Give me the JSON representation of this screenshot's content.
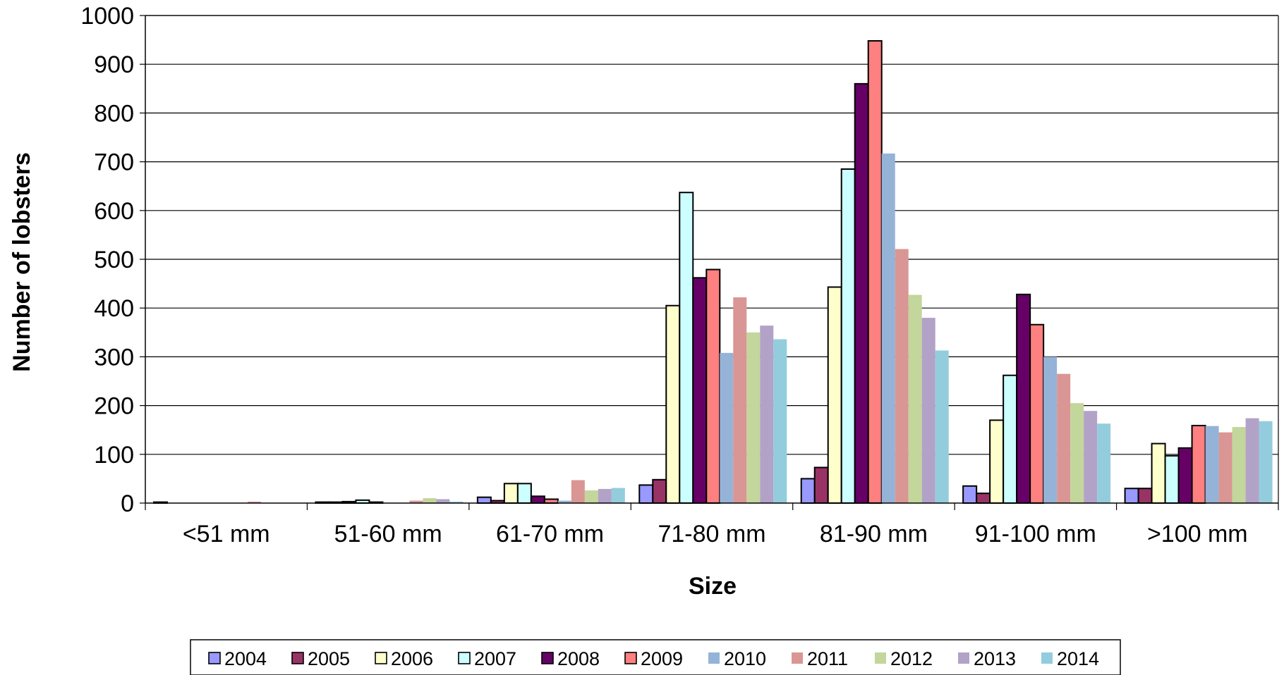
{
  "chart_data": {
    "type": "bar",
    "xlabel": "Size",
    "ylabel": "Number of lobsters",
    "ylim": [
      0,
      1000
    ],
    "yticks": [
      0,
      100,
      200,
      300,
      400,
      500,
      600,
      700,
      800,
      900,
      1000
    ],
    "grid": true,
    "legend_position": "bottom",
    "categories": [
      "<51 mm",
      "51-60 mm",
      "61-70 mm",
      "71-80 mm",
      "81-90 mm",
      "91-100 mm",
      ">100 mm"
    ],
    "series": [
      {
        "name": "2004",
        "color": "#9999ff",
        "outlined": true,
        "values": [
          2,
          2,
          12,
          37,
          50,
          35,
          30
        ]
      },
      {
        "name": "2005",
        "color": "#993366",
        "outlined": true,
        "values": [
          0,
          2,
          5,
          48,
          73,
          20,
          30
        ]
      },
      {
        "name": "2006",
        "color": "#ffffcc",
        "outlined": true,
        "values": [
          0,
          3,
          40,
          405,
          443,
          170,
          122
        ]
      },
      {
        "name": "2007",
        "color": "#ccffff",
        "outlined": true,
        "values": [
          0,
          6,
          40,
          637,
          685,
          262,
          97
        ]
      },
      {
        "name": "2008",
        "color": "#660066",
        "outlined": true,
        "values": [
          0,
          2,
          14,
          462,
          860,
          428,
          113
        ]
      },
      {
        "name": "2009",
        "color": "#ff8080",
        "outlined": true,
        "values": [
          0,
          0,
          8,
          479,
          948,
          366,
          159
        ]
      },
      {
        "name": "2010",
        "color": "#95b3d7",
        "outlined": false,
        "values": [
          0,
          0,
          5,
          308,
          717,
          300,
          158
        ]
      },
      {
        "name": "2011",
        "color": "#d99694",
        "outlined": false,
        "values": [
          3,
          5,
          47,
          422,
          521,
          265,
          145
        ]
      },
      {
        "name": "2012",
        "color": "#c3d69b",
        "outlined": false,
        "values": [
          0,
          10,
          26,
          350,
          427,
          205,
          156
        ]
      },
      {
        "name": "2013",
        "color": "#b3a2c7",
        "outlined": false,
        "values": [
          0,
          8,
          29,
          364,
          380,
          189,
          174
        ]
      },
      {
        "name": "2014",
        "color": "#93cddd",
        "outlined": false,
        "values": [
          0,
          3,
          31,
          336,
          313,
          163,
          168
        ]
      }
    ]
  }
}
